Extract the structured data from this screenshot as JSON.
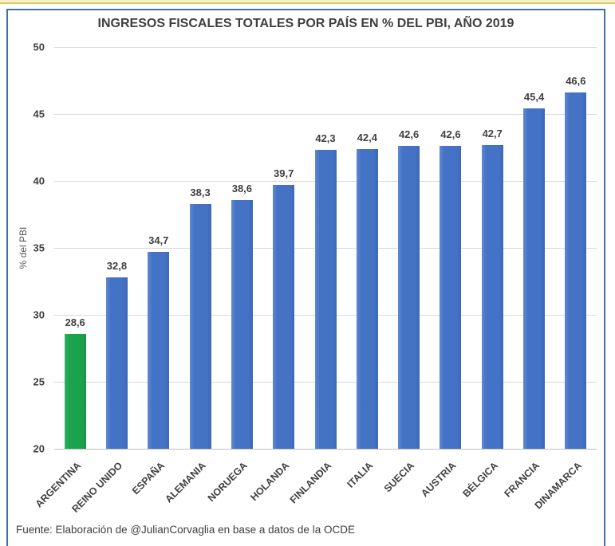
{
  "title": "INGRESOS FISCALES TOTALES POR PAÍS EN % DEL PBI, AÑO 2019",
  "source_note": "Fuente: Elaboración de @JulianCorvaglia en base a datos de la OCDE",
  "colors": {
    "bar_default": "#4472C4",
    "bar_highlight": "#1AA34C",
    "frame_border": "#41719C",
    "top_strip": "#F6F0C3",
    "gridline": "#D9D9D9",
    "text": "#404040"
  },
  "chart_data": {
    "type": "bar",
    "title": "INGRESOS FISCALES TOTALES POR PAÍS EN % DEL PBI, AÑO 2019",
    "categories": [
      "ARGENTINA",
      "REINO UNIDO",
      "ESPAÑA",
      "ALEMANIA",
      "NORUEGA",
      "HOLANDA",
      "FINLANDIA",
      "ITALIA",
      "SUECIA",
      "AUSTRIA",
      "BÉLGICA",
      "FRANCIA",
      "DINAMARCA"
    ],
    "values": [
      28.6,
      32.8,
      34.7,
      38.3,
      38.6,
      39.7,
      42.3,
      42.4,
      42.6,
      42.6,
      42.7,
      45.4,
      46.6
    ],
    "value_labels": [
      "28,6",
      "32,8",
      "34,7",
      "38,3",
      "38,6",
      "39,7",
      "42,3",
      "42,4",
      "42,6",
      "42,6",
      "42,7",
      "45,4",
      "46,6"
    ],
    "highlight_index": 0,
    "xlabel": "",
    "ylabel": "% del PBI",
    "ylim": [
      20,
      50
    ],
    "y_ticks": [
      "50",
      "45",
      "40",
      "35",
      "30",
      "25",
      "20"
    ],
    "y_tick_values": [
      50,
      45,
      40,
      35,
      30,
      25,
      20
    ],
    "grid": true,
    "legend": "none"
  }
}
